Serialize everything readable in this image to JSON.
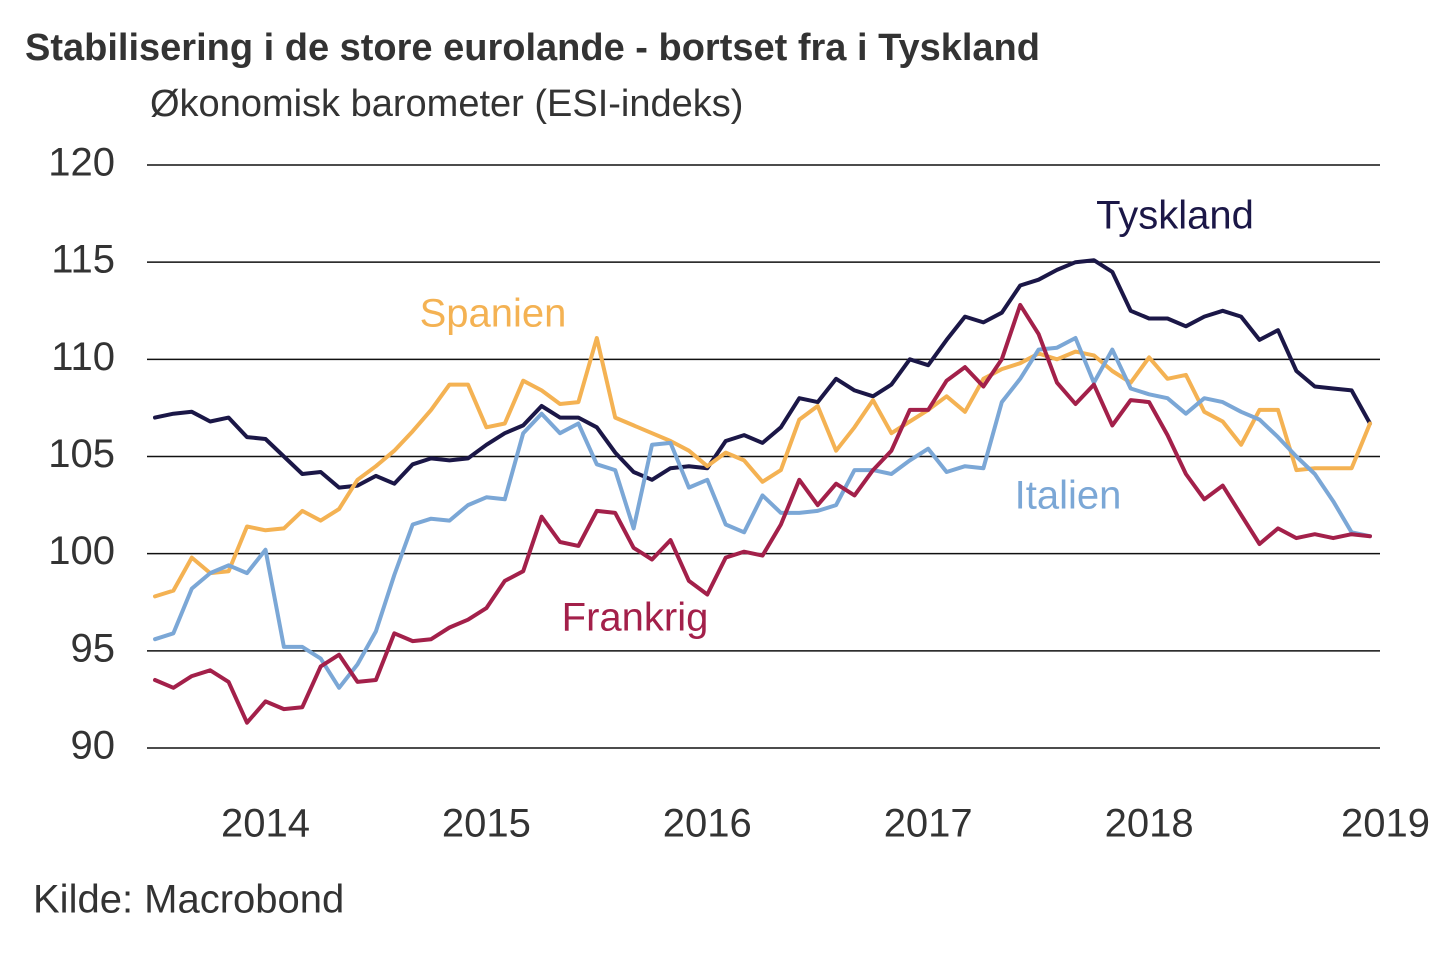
{
  "chart_data": {
    "type": "line",
    "title": "Stabilisering i de store eurolande - bortset fra i Tyskland",
    "subtitle": "Økonomisk barometer (ESI-indeks)",
    "source": "Kilde: Macrobond",
    "categories": [
      null,
      null,
      null,
      null,
      null,
      null,
      "2014",
      null,
      null,
      null,
      null,
      null,
      null,
      null,
      null,
      null,
      null,
      null,
      "2015",
      null,
      null,
      null,
      null,
      null,
      null,
      null,
      null,
      null,
      null,
      null,
      "2016",
      null,
      null,
      null,
      null,
      null,
      null,
      null,
      null,
      null,
      null,
      null,
      "2017",
      null,
      null,
      null,
      null,
      null,
      null,
      null,
      null,
      null,
      null,
      null,
      "2018",
      null,
      null,
      null,
      null,
      null,
      null,
      null,
      null,
      null,
      null,
      null,
      "2019"
    ],
    "ylim": [
      90,
      120
    ],
    "yticks": [
      90,
      95,
      100,
      105,
      110,
      115,
      120
    ],
    "grid": true,
    "series": [
      {
        "name": "Tyskland",
        "color": "#1b1747",
        "values": [
          107.0,
          107.2,
          107.3,
          106.8,
          107.0,
          106.0,
          105.9,
          105.0,
          104.1,
          104.2,
          103.4,
          103.5,
          104.0,
          103.6,
          104.6,
          104.9,
          104.8,
          104.9,
          105.6,
          106.2,
          106.6,
          107.6,
          107.0,
          107.0,
          106.5,
          105.2,
          104.2,
          103.8,
          104.4,
          104.5,
          104.4,
          105.8,
          106.1,
          105.7,
          106.5,
          108.0,
          107.8,
          109.0,
          108.4,
          108.1,
          108.7,
          110.0,
          109.7,
          111.0,
          112.2,
          111.9,
          112.4,
          113.8,
          114.1,
          114.6,
          115.0,
          115.1,
          114.5,
          112.5,
          112.1,
          112.1,
          111.7,
          112.2,
          112.5,
          112.2,
          111.0,
          111.5,
          109.4,
          108.6,
          108.5,
          108.4,
          106.7
        ]
      },
      {
        "name": "Spanien",
        "color": "#f4b253",
        "values": [
          97.8,
          98.1,
          99.8,
          99.0,
          99.1,
          101.4,
          101.2,
          101.3,
          102.2,
          101.7,
          102.3,
          103.8,
          104.5,
          105.3,
          106.3,
          107.4,
          108.7,
          108.7,
          106.5,
          106.7,
          108.9,
          108.4,
          107.7,
          107.8,
          111.1,
          107.0,
          106.6,
          106.2,
          105.8,
          105.3,
          104.5,
          105.2,
          104.8,
          103.7,
          104.3,
          106.9,
          107.6,
          105.3,
          106.5,
          107.9,
          106.2,
          106.8,
          107.4,
          108.1,
          107.3,
          109.0,
          109.5,
          109.8,
          110.3,
          110.0,
          110.4,
          110.2,
          109.4,
          108.8,
          110.1,
          109.0,
          109.2,
          107.3,
          106.8,
          105.6,
          107.4,
          107.4,
          104.3,
          104.4,
          104.4,
          104.4,
          106.7
        ]
      },
      {
        "name": "Italien",
        "color": "#7ba7d6",
        "values": [
          95.6,
          95.9,
          98.2,
          99.0,
          99.4,
          99.0,
          100.2,
          95.2,
          95.2,
          94.6,
          93.1,
          94.3,
          96.0,
          98.9,
          101.5,
          101.8,
          101.7,
          102.5,
          102.9,
          102.8,
          106.2,
          107.2,
          106.2,
          106.7,
          104.6,
          104.3,
          101.3,
          105.6,
          105.7,
          103.4,
          103.8,
          101.5,
          101.1,
          103.0,
          102.1,
          102.1,
          102.2,
          102.5,
          104.3,
          104.3,
          104.1,
          104.8,
          105.4,
          104.2,
          104.5,
          104.4,
          107.8,
          109.0,
          110.5,
          110.6,
          111.1,
          108.8,
          110.5,
          108.5,
          108.2,
          108.0,
          107.2,
          108.0,
          107.8,
          107.3,
          106.9,
          106.0,
          105.0,
          104.1,
          102.7,
          101.1,
          100.9
        ]
      },
      {
        "name": "Frankrig",
        "color": "#a3204a",
        "values": [
          93.5,
          93.1,
          93.7,
          94.0,
          93.4,
          91.3,
          92.4,
          92.0,
          92.1,
          94.2,
          94.8,
          93.4,
          93.5,
          95.9,
          95.5,
          95.6,
          96.2,
          96.6,
          97.2,
          98.6,
          99.1,
          101.9,
          100.6,
          100.4,
          102.2,
          102.1,
          100.3,
          99.7,
          100.7,
          98.6,
          97.9,
          99.8,
          100.1,
          99.9,
          101.5,
          103.8,
          102.5,
          103.6,
          103.0,
          104.3,
          105.3,
          107.4,
          107.4,
          108.9,
          109.6,
          108.6,
          110.0,
          112.8,
          111.3,
          108.8,
          107.7,
          108.7,
          106.6,
          107.9,
          107.8,
          106.1,
          104.1,
          102.8,
          103.5,
          102.0,
          100.5,
          101.3,
          100.8,
          101.0,
          100.8,
          101.0,
          100.9
        ]
      }
    ]
  }
}
